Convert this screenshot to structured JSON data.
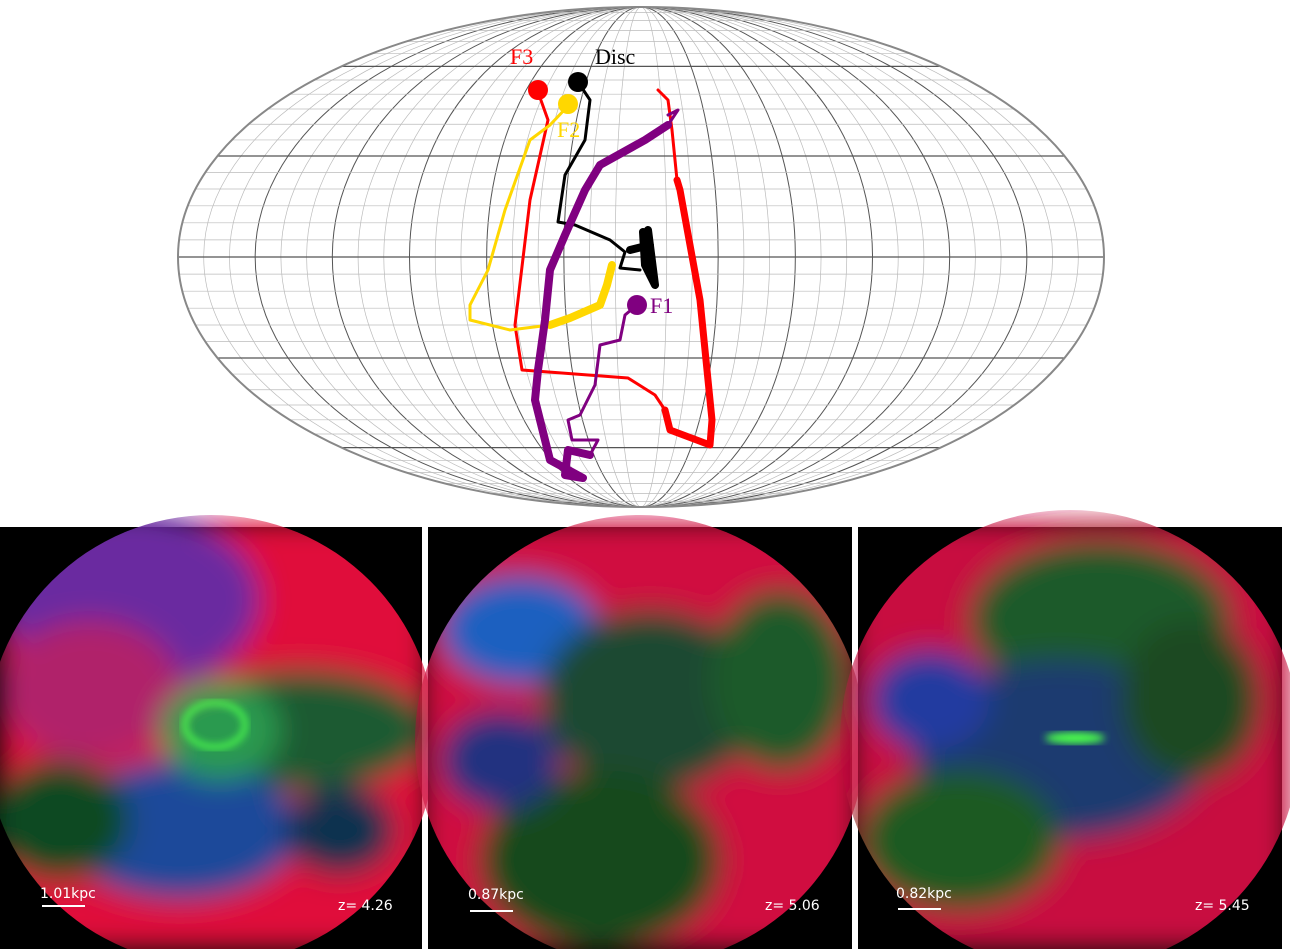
{
  "map": {
    "labels": [
      {
        "text": "F3",
        "color": "#ff0000"
      },
      {
        "text": "Disc",
        "color": "#000000"
      },
      {
        "text": "F2",
        "color": "#ffd700"
      },
      {
        "text": "F1",
        "color": "#800080"
      }
    ]
  },
  "panels": [
    {
      "scale": "1.01kpc",
      "redshift": "z=  4.26"
    },
    {
      "scale": "0.87kpc",
      "redshift": "z=  5.06"
    },
    {
      "scale": "0.82kpc",
      "redshift": "z=  5.45"
    }
  ]
}
